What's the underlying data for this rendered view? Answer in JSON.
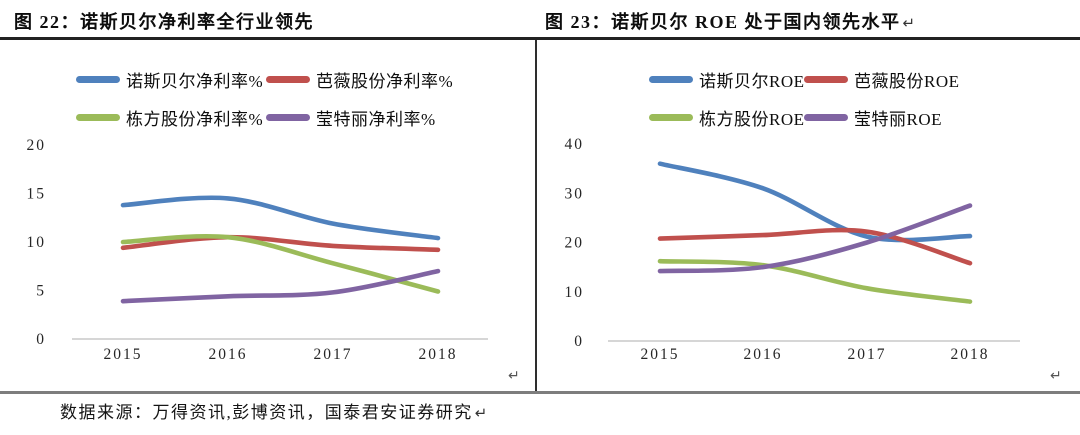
{
  "page": {
    "paragraph_mark": "↵",
    "footer_source": "数据来源：万得资讯,彭博资讯，国泰君安证券研究"
  },
  "chart_data": [
    {
      "type": "line",
      "title": "图 22：诺斯贝尔净利率全行业领先",
      "x": [
        "2015",
        "2016",
        "2017",
        "2018"
      ],
      "series": [
        {
          "name": "诺斯贝尔净利率%",
          "color": "#4F81BD",
          "values": [
            13.8,
            14.5,
            11.9,
            10.4
          ]
        },
        {
          "name": "芭薇股份净利率%",
          "color": "#C0504D",
          "values": [
            9.4,
            10.5,
            9.6,
            9.2
          ]
        },
        {
          "name": "栋方股份净利率%",
          "color": "#9BBB59",
          "values": [
            10.0,
            10.5,
            7.8,
            4.9
          ]
        },
        {
          "name": "莹特丽净利率%",
          "color": "#8064A2",
          "values": [
            3.9,
            4.4,
            4.8,
            7.0
          ]
        }
      ],
      "xlabel": "",
      "ylabel": "",
      "ylim": [
        0,
        20
      ],
      "yticks": [
        0,
        5,
        10,
        15,
        20
      ],
      "grid": false,
      "legend_position": "top",
      "line_style": "smooth"
    },
    {
      "type": "line",
      "title": "图 23：诺斯贝尔 ROE 处于国内领先水平",
      "x": [
        "2015",
        "2016",
        "2017",
        "2018"
      ],
      "series": [
        {
          "name": "诺斯贝尔ROE",
          "color": "#4F81BD",
          "values": [
            36.0,
            31.0,
            21.2,
            21.3
          ]
        },
        {
          "name": "芭薇股份ROE",
          "color": "#C0504D",
          "values": [
            20.8,
            21.5,
            22.2,
            15.8
          ]
        },
        {
          "name": "栋方股份ROE",
          "color": "#9BBB59",
          "values": [
            16.2,
            15.4,
            10.7,
            8.0
          ]
        },
        {
          "name": "莹特丽ROE",
          "color": "#8064A2",
          "values": [
            14.2,
            15.0,
            20.0,
            27.5
          ]
        }
      ],
      "xlabel": "",
      "ylabel": "",
      "ylim": [
        0,
        40
      ],
      "yticks": [
        0,
        10,
        20,
        30,
        40
      ],
      "grid": false,
      "legend_position": "top",
      "line_style": "smooth"
    }
  ]
}
